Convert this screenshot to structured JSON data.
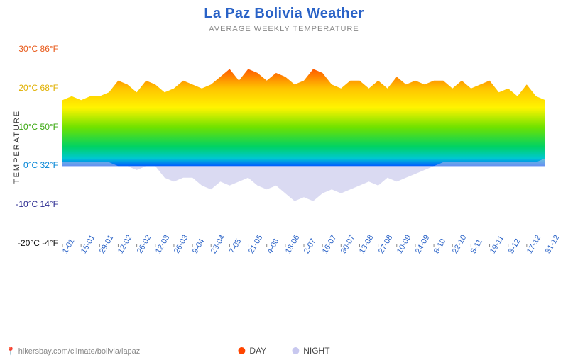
{
  "title": {
    "text": "La Paz Bolivia Weather",
    "color": "#2962c7",
    "fontsize": 20
  },
  "subtitle": {
    "text": "AVERAGE WEEKLY TEMPERATURE",
    "color": "#888888",
    "fontsize": 11
  },
  "y_axis": {
    "title": "TEMPERATURE",
    "ticks": [
      {
        "v": 30,
        "label": "30°C 86°F",
        "color": "#e85a1a"
      },
      {
        "v": 20,
        "label": "20°C 68°F",
        "color": "#e0b000"
      },
      {
        "v": 10,
        "label": "10°C 50°F",
        "color": "#3aa810"
      },
      {
        "v": 0,
        "label": "0°C 32°F",
        "color": "#0084d6"
      },
      {
        "v": -10,
        "label": "-10°C 14°F",
        "color": "#2a2a90"
      },
      {
        "v": -20,
        "label": "-20°C -4°F",
        "color": "#111111"
      }
    ],
    "min": -20,
    "max": 30
  },
  "x_labels": [
    "1-01",
    "15-01",
    "29-01",
    "12-02",
    "26-02",
    "12-03",
    "26-03",
    "9-04",
    "23-04",
    "7-05",
    "21-05",
    "4-06",
    "18-06",
    "2-07",
    "16-07",
    "30-07",
    "13-08",
    "27-08",
    "10-09",
    "24-09",
    "8-10",
    "22-10",
    "5-11",
    "19-11",
    "3-12",
    "17-12",
    "31-12"
  ],
  "series": {
    "day": {
      "highs": [
        17,
        18,
        17,
        18,
        18,
        19,
        22,
        21,
        19,
        22,
        21,
        19,
        20,
        22,
        21,
        20,
        21,
        23,
        25,
        22,
        25,
        24,
        22,
        24,
        23,
        21,
        22,
        25,
        24,
        21,
        20,
        22,
        22,
        20,
        22,
        20,
        23,
        21,
        22,
        21,
        22,
        22,
        20,
        22,
        20,
        21,
        22,
        19,
        20,
        18,
        21,
        18,
        17
      ],
      "baseline": 0
    },
    "night": {
      "lows": [
        1,
        1,
        1,
        1,
        1,
        1,
        0,
        0,
        -1,
        0,
        0,
        -3,
        -4,
        -3,
        -3,
        -5,
        -6,
        -4,
        -5,
        -4,
        -3,
        -5,
        -6,
        -5,
        -7,
        -9,
        -8,
        -9,
        -7,
        -6,
        -7,
        -6,
        -5,
        -4,
        -5,
        -3,
        -4,
        -3,
        -2,
        -1,
        0,
        1,
        1,
        1,
        1,
        1,
        1,
        1,
        1,
        1,
        1,
        1,
        2
      ],
      "baseline": 0,
      "fill": "#bcbce8",
      "opacity": 0.55
    }
  },
  "gradient_stops": [
    {
      "t": 30,
      "c": "#d61f00"
    },
    {
      "t": 25,
      "c": "#ff5a00"
    },
    {
      "t": 20,
      "c": "#ffc400"
    },
    {
      "t": 15,
      "c": "#fff400"
    },
    {
      "t": 10,
      "c": "#6fe200"
    },
    {
      "t": 5,
      "c": "#00d264"
    },
    {
      "t": 2,
      "c": "#00c8d0"
    },
    {
      "t": 0,
      "c": "#005cff"
    },
    {
      "t": -20,
      "c": "#160078"
    }
  ],
  "legend": {
    "day": {
      "label": "DAY",
      "color": "#ff4500"
    },
    "night": {
      "label": "NIGHT",
      "color": "#c8c8ef"
    }
  },
  "footer": {
    "text": "hikersbay.com/climate/bolivia/lapaz",
    "color": "#888888"
  },
  "background_color": "#ffffff"
}
